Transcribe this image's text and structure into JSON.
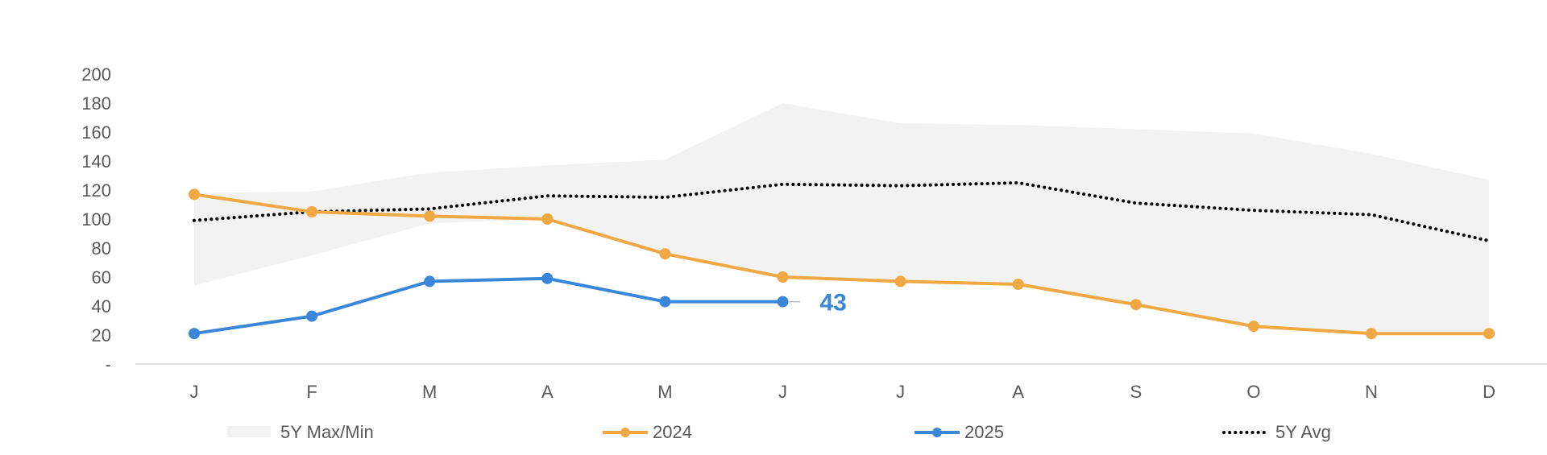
{
  "chart_data": {
    "type": "line",
    "categories": [
      "J",
      "F",
      "M",
      "A",
      "M",
      "J",
      "J",
      "A",
      "S",
      "O",
      "N",
      "D"
    ],
    "y_ticks": [
      "-",
      "20",
      "40",
      "60",
      "80",
      "100",
      "120",
      "140",
      "160",
      "180",
      "200"
    ],
    "ylim": [
      0,
      200
    ],
    "grid": false,
    "legend_position": "bottom",
    "band": {
      "name": "5Y Max/Min",
      "max": [
        118,
        119,
        132,
        137,
        141,
        180,
        166,
        165,
        162,
        159,
        145,
        127
      ],
      "min": [
        54,
        75,
        97,
        100,
        76,
        60,
        57,
        55,
        41,
        26,
        21,
        21
      ],
      "color": "#f2f2f2"
    },
    "series": [
      {
        "name": "2024",
        "color": "#f0a844",
        "style": "solid-markers",
        "values": [
          117,
          105,
          102,
          100,
          76,
          60,
          57,
          55,
          41,
          26,
          21,
          21
        ]
      },
      {
        "name": "2025",
        "color": "#3a86d9",
        "style": "solid-markers",
        "values": [
          21,
          33,
          57,
          59,
          43,
          43,
          null,
          null,
          null,
          null,
          null,
          null
        ]
      },
      {
        "name": "5Y Avg",
        "color": "#000000",
        "style": "dotted",
        "values": [
          99,
          105,
          107,
          116,
          115,
          124,
          123,
          125,
          111,
          106,
          103,
          85
        ]
      }
    ],
    "annotation": {
      "text": "43",
      "series": "2025",
      "index": 5,
      "color": "#3a86d9"
    }
  }
}
